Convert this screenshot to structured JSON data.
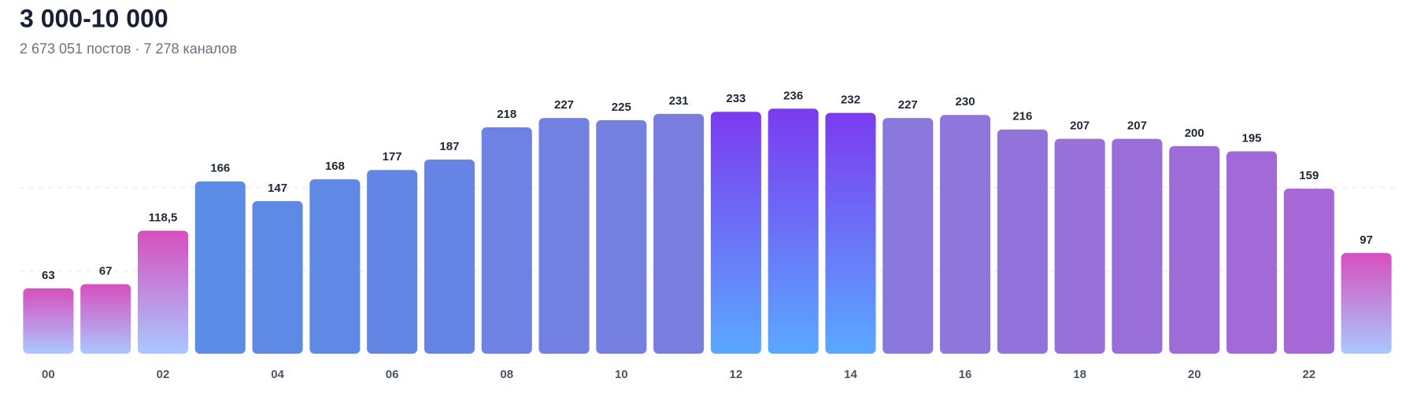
{
  "chart_data": {
    "type": "bar",
    "title": "3 000-10 000",
    "subtitle": "2 673 051 постов · 7 278 каналов",
    "categories": [
      "00",
      null,
      "02",
      null,
      "04",
      null,
      "06",
      null,
      "08",
      null,
      "10",
      null,
      "12",
      null,
      "14",
      null,
      "16",
      null,
      "18",
      null,
      "20",
      null,
      "22",
      null
    ],
    "values": [
      63,
      67,
      118.5,
      166,
      147,
      168,
      177,
      187,
      218,
      227,
      225,
      231,
      233,
      236,
      232,
      227,
      230,
      216,
      207,
      207,
      200,
      195,
      159,
      97
    ],
    "value_labels": [
      "63",
      "67",
      "118,5",
      "166",
      "147",
      "168",
      "177",
      "187",
      "218",
      "227",
      "225",
      "231",
      "233",
      "236",
      "232",
      "227",
      "230",
      "216",
      "207",
      "207",
      "200",
      "195",
      "159",
      "97"
    ],
    "colors": [
      [
        "#d64fbf",
        "#a9c8ff"
      ],
      [
        "#d64fbf",
        "#a9c8ff"
      ],
      [
        "#d64fbf",
        "#a9c8ff"
      ],
      "#5b8de6",
      "#5e8ae6",
      "#6088e5",
      "#6386e4",
      "#6684e4",
      "#6d82e2",
      "#7180e1",
      "#757fe0",
      "#797de0",
      [
        "#7b3bef",
        "#5aa8ff"
      ],
      [
        "#7b3bef",
        "#5aa8ff"
      ],
      [
        "#7b3bef",
        "#5aa8ff"
      ],
      "#8a78dd",
      "#8e76dc",
      "#9373db",
      "#9770da",
      "#9a6ed9",
      "#9e6cd9",
      "#a26ad8",
      "#a668d7",
      [
        "#d64fbf",
        "#a9c8ff"
      ]
    ],
    "ylim": [
      0,
      240
    ],
    "gridlines": [
      80,
      160
    ]
  }
}
